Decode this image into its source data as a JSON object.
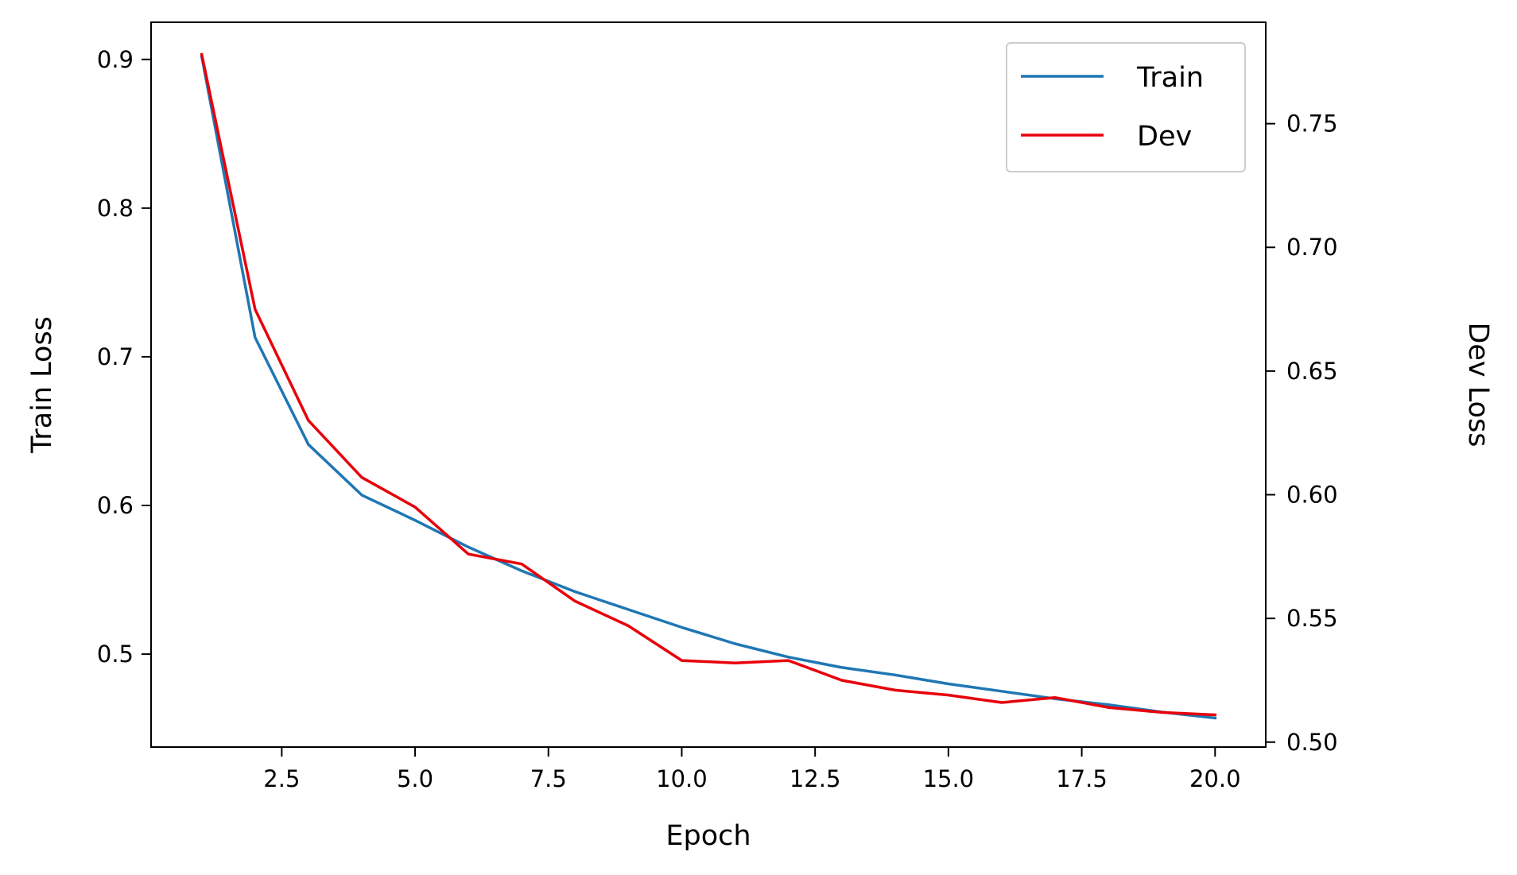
{
  "chart_data": {
    "type": "line",
    "title": "",
    "xlabel": "Epoch",
    "ylabel": "Train Loss",
    "ylabel_right": "Dev Loss",
    "xlim": [
      0.05,
      20.95
    ],
    "ylim_left": [
      0.4375,
      0.925
    ],
    "ylim_right": [
      0.498,
      0.791
    ],
    "x_ticks": [
      2.5,
      5.0,
      7.5,
      10.0,
      12.5,
      15.0,
      17.5,
      20.0
    ],
    "x_tick_labels": [
      "2.5",
      "5.0",
      "7.5",
      "10.0",
      "12.5",
      "15.0",
      "17.5",
      "20.0"
    ],
    "y_ticks_left": [
      0.5,
      0.6,
      0.7,
      0.8,
      0.9
    ],
    "y_tick_labels_left": [
      "0.5",
      "0.6",
      "0.7",
      "0.8",
      "0.9"
    ],
    "y_ticks_right": [
      0.5,
      0.55,
      0.6,
      0.65,
      0.7,
      0.75
    ],
    "y_tick_labels_right": [
      "0.50",
      "0.55",
      "0.60",
      "0.65",
      "0.70",
      "0.75"
    ],
    "grid": false,
    "legend_position": "top-right",
    "x": [
      1,
      2,
      3,
      4,
      5,
      6,
      7,
      8,
      9,
      10,
      11,
      12,
      13,
      14,
      15,
      16,
      17,
      18,
      19,
      20
    ],
    "series": [
      {
        "name": "Train",
        "axis": "left",
        "color": "#1f77b4",
        "values": [
          0.902,
          0.713,
          0.641,
          0.607,
          0.59,
          0.572,
          0.556,
          0.542,
          0.53,
          0.518,
          0.507,
          0.498,
          0.491,
          0.486,
          0.48,
          0.475,
          0.47,
          0.466,
          0.461,
          0.457
        ]
      },
      {
        "name": "Dev",
        "axis": "right",
        "color": "#e8000b",
        "values": [
          0.778,
          0.675,
          0.63,
          0.607,
          0.595,
          0.576,
          0.572,
          0.557,
          0.547,
          0.533,
          0.532,
          0.533,
          0.525,
          0.521,
          0.519,
          0.516,
          0.518,
          0.514,
          0.512,
          0.511
        ]
      }
    ]
  }
}
